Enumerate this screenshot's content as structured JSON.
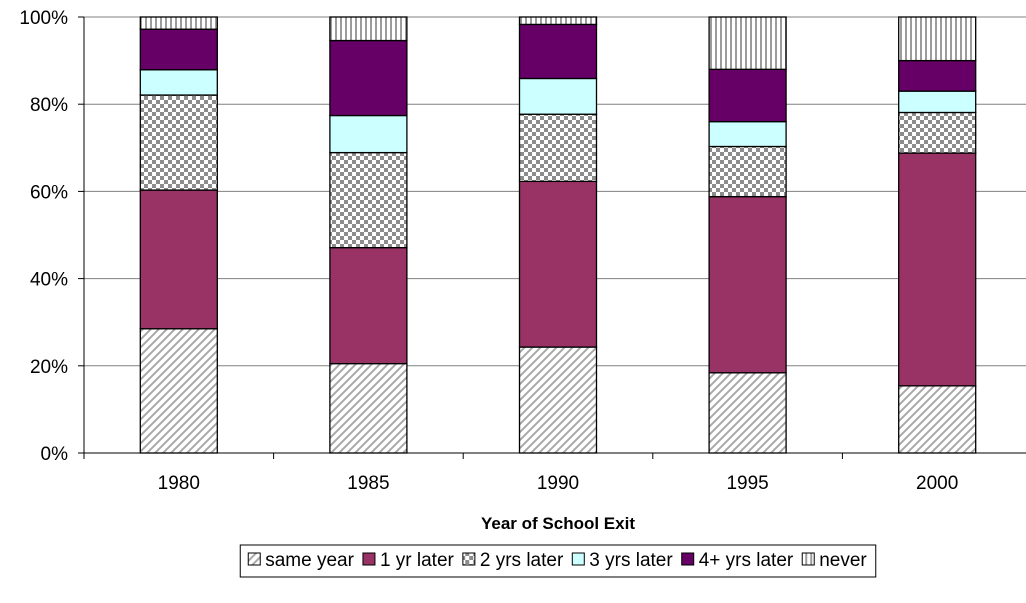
{
  "chart_data": {
    "type": "bar",
    "stacked": true,
    "percent_stacked": true,
    "title": "",
    "xlabel": "Year of School Exit",
    "ylabel": "",
    "categories": [
      "1980",
      "1985",
      "1990",
      "1995",
      "2000"
    ],
    "y_ticks": [
      "0%",
      "20%",
      "40%",
      "60%",
      "80%",
      "100%"
    ],
    "ylim": [
      0,
      100
    ],
    "grid": true,
    "legend_position": "bottom",
    "series": [
      {
        "name": "same year",
        "values": [
          28.5,
          20.5,
          24.3,
          18.4,
          15.4
        ],
        "color": "#d0d0d0",
        "pattern": "diagonal"
      },
      {
        "name": "1 yr later",
        "values": [
          31.8,
          26.6,
          38.0,
          40.4,
          53.4
        ],
        "color": "#993366",
        "pattern": "solid"
      },
      {
        "name": "2 yrs later",
        "values": [
          21.8,
          21.8,
          15.4,
          11.5,
          9.3
        ],
        "color": "#a0a0a0",
        "pattern": "checker"
      },
      {
        "name": "3 yrs later",
        "values": [
          5.8,
          8.5,
          8.2,
          5.7,
          4.9
        ],
        "color": "#ccffff",
        "pattern": "solid"
      },
      {
        "name": "4+ yrs later",
        "values": [
          9.3,
          17.2,
          12.4,
          12.0,
          7.0
        ],
        "color": "#660066",
        "pattern": "solid"
      },
      {
        "name": "never",
        "values": [
          2.8,
          5.4,
          1.7,
          12.0,
          10.0
        ],
        "color": "#c0c0c0",
        "pattern": "vertical"
      }
    ]
  }
}
